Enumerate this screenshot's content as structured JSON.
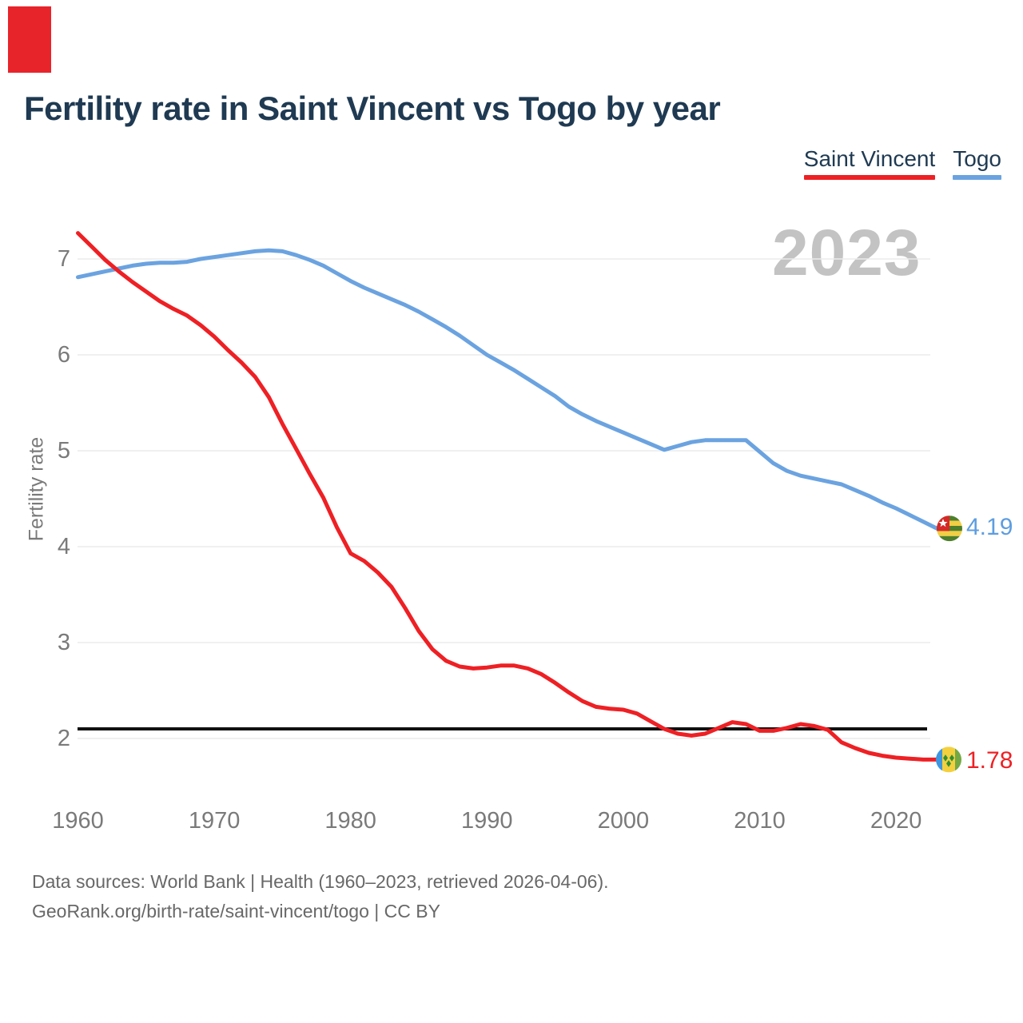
{
  "corner_marker": {
    "color": "#e8242b"
  },
  "title": "Fertility rate in Saint Vincent vs Togo by year",
  "legend": [
    {
      "label": "Saint Vincent",
      "color": "#ee2024"
    },
    {
      "label": "Togo",
      "color": "#6ba3e0"
    }
  ],
  "watermark": "2023",
  "y_axis": {
    "label": "Fertility rate",
    "ticks": [
      7,
      6,
      5,
      4,
      3,
      2
    ]
  },
  "x_axis": {
    "ticks": [
      1960,
      1970,
      1980,
      1990,
      2000,
      2010,
      2020
    ]
  },
  "reference_line": {
    "value": 2.1,
    "color": "#111111"
  },
  "end_labels": [
    {
      "series": "Togo",
      "value": "4.19",
      "color": "#5d9de0",
      "flag": "togo-flag"
    },
    {
      "series": "Saint Vincent",
      "value": "1.78",
      "color": "#ee2024",
      "flag": "saint-vincent-flag"
    }
  ],
  "footer": {
    "line1": "Data sources: World Bank | Health (1960–2023, retrieved 2026-04-06).",
    "line2": "GeoRank.org/birth-rate/saint-vincent/togo | CC BY"
  },
  "chart_data": {
    "type": "line",
    "title": "Fertility rate in Saint Vincent vs Togo by year",
    "xlabel": "",
    "ylabel": "Fertility rate",
    "xlim": [
      1960,
      2023
    ],
    "ylim": [
      1.6,
      7.4
    ],
    "grid": "horizontal",
    "legend_position": "top-right",
    "annotations": {
      "replacement_line": 2.1,
      "watermark_year": "2023"
    },
    "years": [
      1960,
      1961,
      1962,
      1963,
      1964,
      1965,
      1966,
      1967,
      1968,
      1969,
      1970,
      1971,
      1972,
      1973,
      1974,
      1975,
      1976,
      1977,
      1978,
      1979,
      1980,
      1981,
      1982,
      1983,
      1984,
      1985,
      1986,
      1987,
      1988,
      1989,
      1990,
      1991,
      1992,
      1993,
      1994,
      1995,
      1996,
      1997,
      1998,
      1999,
      2000,
      2001,
      2002,
      2003,
      2004,
      2005,
      2006,
      2007,
      2008,
      2009,
      2010,
      2011,
      2012,
      2013,
      2014,
      2015,
      2016,
      2017,
      2018,
      2019,
      2020,
      2021,
      2022,
      2023
    ],
    "series": [
      {
        "name": "Togo",
        "color": "#6ba3e0",
        "end_value": 4.19,
        "values": [
          6.81,
          6.84,
          6.87,
          6.9,
          6.93,
          6.95,
          6.96,
          6.96,
          6.97,
          7.0,
          7.02,
          7.04,
          7.06,
          7.08,
          7.09,
          7.08,
          7.04,
          6.99,
          6.93,
          6.85,
          6.77,
          6.7,
          6.64,
          6.58,
          6.52,
          6.45,
          6.37,
          6.29,
          6.2,
          6.1,
          6.0,
          5.92,
          5.84,
          5.75,
          5.66,
          5.57,
          5.46,
          5.38,
          5.31,
          5.25,
          5.19,
          5.13,
          5.07,
          5.01,
          5.05,
          5.09,
          5.11,
          5.11,
          5.11,
          5.11,
          4.99,
          4.87,
          4.79,
          4.74,
          4.71,
          4.68,
          4.65,
          4.59,
          4.53,
          4.46,
          4.4,
          4.33,
          4.26,
          4.19
        ]
      },
      {
        "name": "Saint Vincent",
        "color": "#ee2024",
        "end_value": 1.78,
        "values": [
          7.27,
          7.13,
          6.99,
          6.87,
          6.76,
          6.66,
          6.56,
          6.48,
          6.41,
          6.31,
          6.19,
          6.05,
          5.92,
          5.77,
          5.56,
          5.28,
          5.02,
          4.76,
          4.51,
          4.2,
          3.93,
          3.85,
          3.73,
          3.58,
          3.36,
          3.12,
          2.93,
          2.81,
          2.75,
          2.73,
          2.74,
          2.76,
          2.76,
          2.73,
          2.67,
          2.58,
          2.48,
          2.39,
          2.33,
          2.31,
          2.3,
          2.26,
          2.18,
          2.1,
          2.05,
          2.03,
          2.05,
          2.11,
          2.17,
          2.15,
          2.08,
          2.08,
          2.11,
          2.15,
          2.13,
          2.09,
          1.96,
          1.9,
          1.85,
          1.82,
          1.8,
          1.79,
          1.78,
          1.78
        ]
      }
    ]
  }
}
